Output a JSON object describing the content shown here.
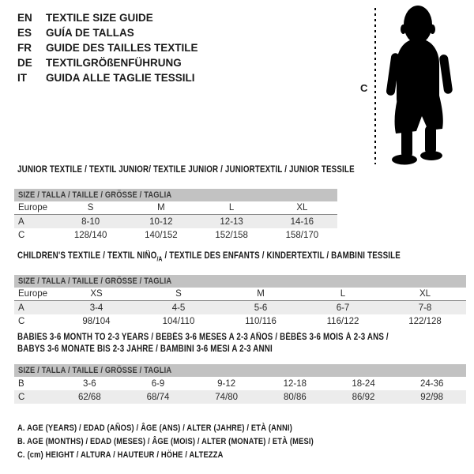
{
  "languages": [
    {
      "code": "EN",
      "label": "TEXTILE SIZE GUIDE"
    },
    {
      "code": "ES",
      "label": "GUÍA DE TALLAS"
    },
    {
      "code": "FR",
      "label": "GUIDE DES TAILLES TEXTILE"
    },
    {
      "code": "DE",
      "label": "TEXTILGRÖßENFÜHRUNG"
    },
    {
      "code": "IT",
      "label": "GUIDA ALLE TAGLIE TESSILI"
    }
  ],
  "figure": {
    "height_label": "C"
  },
  "sections": [
    {
      "name": "junior",
      "title_lines": [
        [
          {
            "t": "JUNIOR TEXTILE / TEXTIL JUNIOR/ TEXTILE JUNIOR / JUNIORTEXTIL / JUNIOR TESSILE"
          }
        ]
      ],
      "size_header": "SIZE / TALLA / TAILLE / GRÖSSE / TAGLIA",
      "rows": [
        {
          "label": "Europe",
          "values": [
            "S",
            "M",
            "L",
            "XL"
          ]
        },
        {
          "label": "A",
          "values": [
            "8-10",
            "10-12",
            "12-13",
            "14-16"
          ]
        },
        {
          "label": "C",
          "values": [
            "128/140",
            "140/152",
            "152/158",
            "158/170"
          ]
        }
      ]
    },
    {
      "name": "children",
      "title_lines": [
        [
          {
            "t": "CHILDREN'S TEXTILE / TEXTIL NIÑO"
          },
          {
            "t": "/A",
            "sub": true
          },
          {
            "t": " / TEXTILE DES ENFANTS / KINDERTEXTIL / BAMBINI TESSILE"
          }
        ]
      ],
      "size_header": "SIZE / TALLA / TAILLE / GRÖSSE / TAGLIA",
      "rows": [
        {
          "label": "Europe",
          "values": [
            "XS",
            "S",
            "M",
            "L",
            "XL"
          ]
        },
        {
          "label": "A",
          "values": [
            "3-4",
            "4-5",
            "5-6",
            "6-7",
            "7-8"
          ]
        },
        {
          "label": "C",
          "values": [
            "98/104",
            "104/110",
            "110/116",
            "116/122",
            "122/128"
          ]
        }
      ]
    },
    {
      "name": "babies",
      "title_lines": [
        [
          {
            "t": "BABIES 3-6 MONTH TO 2-3 YEARS / BEBÉS 3-6 MESES A 2-3 AÑOS / BÉBÉS 3-6 MOIS À 2-3 ANS /"
          }
        ],
        [
          {
            "t": "BABYS 3-6 MONATE BIS 2-3 JAHRE / BAMBINI 3-6 MESI A 2-3 ANNI"
          }
        ]
      ],
      "size_header": "SIZE / TALLA / TAILLE / GRÖSSE / TAGLIA",
      "rows": [
        {
          "label": "B",
          "values": [
            "3-6",
            "6-9",
            "9-12",
            "12-18",
            "18-24",
            "24-36"
          ]
        },
        {
          "label": "C",
          "values": [
            "62/68",
            "68/74",
            "74/80",
            "80/86",
            "86/92",
            "92/98"
          ]
        }
      ]
    }
  ],
  "notes": [
    "A. AGE (YEARS) / EDAD (AÑOS) / ÂGE (ANS) / ALTER (JAHRE) / ETÀ (ANNI)",
    "B. AGE (MONTHS) / EDAD (MESES) / ÂGE (MOIS) / ALTER (MONATE) / ETÀ (MESI)",
    "C. (cm) HEIGHT / ALTURA / HAUTEUR / HÖHE / ALTEZZA"
  ],
  "colors": {
    "page_bg": "#ffffff",
    "header_bar_bg": "#c2c2c2",
    "header_bar_text": "#3a3a3a",
    "row_alt_bg": "#ececec",
    "row_divider": "#8c8c8c",
    "text": "#1a1a1a",
    "silhouette": "#000000"
  }
}
